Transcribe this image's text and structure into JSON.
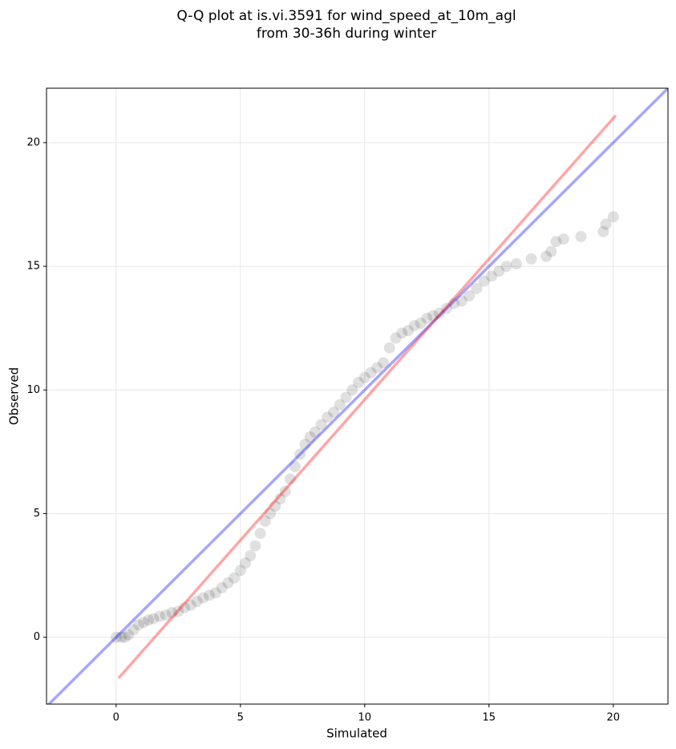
{
  "chart_data": {
    "type": "scatter",
    "title": [
      "Q-Q plot at is.vi.3591 for wind_speed_at_10m_agl",
      "from 30-36h during winter"
    ],
    "x_label": "Simulated",
    "y_label": "Observed",
    "xlim": [
      -2.8,
      22.2
    ],
    "ylim": [
      -2.7,
      22.2
    ],
    "xticks": [
      0,
      5,
      10,
      15,
      20
    ],
    "yticks": [
      0,
      5,
      10,
      15,
      20
    ],
    "grid": true,
    "point_color": "#000000",
    "point_alpha": 0.12,
    "series": [
      {
        "x": [
          0.0,
          0.2,
          0.35,
          0.5,
          0.7,
          0.9,
          1.1,
          1.3,
          1.5,
          1.75,
          2.0,
          2.25,
          2.5,
          2.75,
          3.0,
          3.25,
          3.5,
          3.75,
          4.0,
          4.25,
          4.5,
          4.75,
          5.0,
          5.2,
          5.4,
          5.6,
          5.8,
          6.0,
          6.2,
          6.4,
          6.6,
          6.8,
          7.0,
          7.2,
          7.4,
          7.6,
          7.8,
          8.0,
          8.25,
          8.5,
          8.75,
          9.0,
          9.25,
          9.5,
          9.75,
          10.0,
          10.25,
          10.5,
          10.75,
          11.0,
          11.25,
          11.5,
          11.75,
          12.0,
          12.25,
          12.5,
          12.75,
          13.0,
          13.3,
          13.6,
          13.9,
          14.2,
          14.5,
          14.8,
          15.1,
          15.4,
          15.7,
          16.1,
          16.7,
          17.3,
          17.5,
          17.7,
          18.0,
          18.7,
          19.6,
          19.7,
          20.0
        ],
        "y": [
          0.0,
          0.0,
          0.0,
          0.1,
          0.3,
          0.5,
          0.6,
          0.7,
          0.75,
          0.85,
          0.9,
          1.0,
          1.05,
          1.2,
          1.3,
          1.45,
          1.6,
          1.7,
          1.8,
          2.0,
          2.2,
          2.4,
          2.7,
          3.0,
          3.3,
          3.7,
          4.2,
          4.7,
          5.0,
          5.3,
          5.6,
          5.9,
          6.4,
          6.9,
          7.4,
          7.8,
          8.1,
          8.3,
          8.6,
          8.9,
          9.1,
          9.4,
          9.7,
          10.0,
          10.3,
          10.5,
          10.7,
          10.9,
          11.1,
          11.7,
          12.1,
          12.3,
          12.4,
          12.6,
          12.7,
          12.9,
          13.0,
          13.1,
          13.3,
          13.5,
          13.6,
          13.8,
          14.1,
          14.4,
          14.6,
          14.8,
          15.0,
          15.1,
          15.3,
          15.4,
          15.6,
          16.0,
          16.1,
          16.2,
          16.4,
          16.7,
          17.0
        ]
      }
    ],
    "lines": [
      {
        "color": "#0000ff",
        "alpha": 0.35,
        "x": [
          -2.8,
          22.2
        ],
        "y": [
          -2.8,
          22.2
        ]
      },
      {
        "color": "#ff0000",
        "alpha": 0.35,
        "x": [
          0.1,
          20.1
        ],
        "y": [
          -1.65,
          21.1
        ]
      }
    ]
  }
}
